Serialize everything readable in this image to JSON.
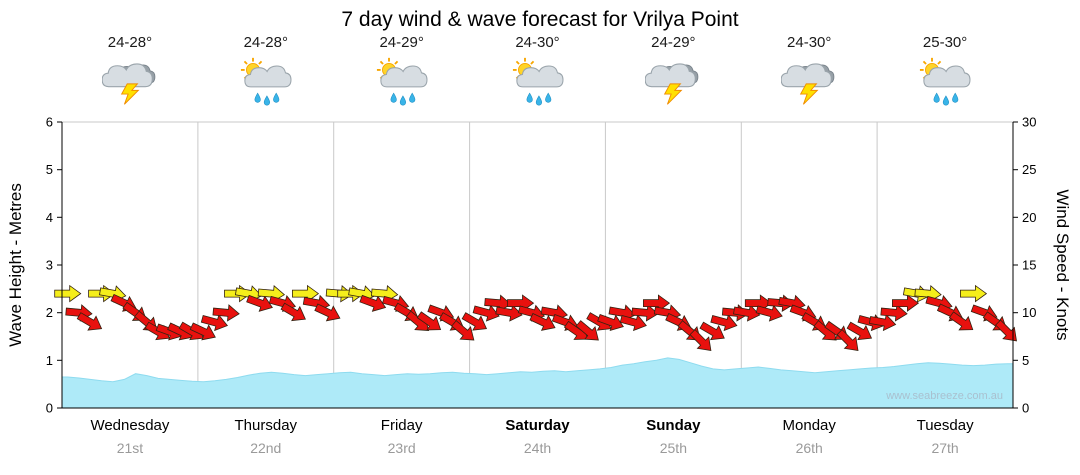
{
  "title": "7 day wind & wave forecast for Vrilya Point",
  "watermark": "www.seabreeze.com.au",
  "axes": {
    "left_title": "Wave Height - Metres",
    "right_title": "Wind Speed - Knots",
    "left_ticks": [
      0,
      1,
      2,
      3,
      4,
      5,
      6
    ],
    "right_ticks": [
      0,
      5,
      10,
      15,
      20,
      25,
      30
    ]
  },
  "days": [
    {
      "name": "Wednesday",
      "date": "21st",
      "temp": "24-28°",
      "icon": "thunderstorm",
      "weekend": false
    },
    {
      "name": "Thursday",
      "date": "22nd",
      "temp": "24-28°",
      "icon": "sun-showers",
      "weekend": false
    },
    {
      "name": "Friday",
      "date": "23rd",
      "temp": "24-29°",
      "icon": "sun-showers",
      "weekend": false
    },
    {
      "name": "Saturday",
      "date": "24th",
      "temp": "24-30°",
      "icon": "sun-showers",
      "weekend": true
    },
    {
      "name": "Sunday",
      "date": "25th",
      "temp": "24-29°",
      "icon": "thunderstorm",
      "weekend": true
    },
    {
      "name": "Monday",
      "date": "26th",
      "temp": "24-30°",
      "icon": "thunderstorm",
      "weekend": false
    },
    {
      "name": "Tuesday",
      "date": "27th",
      "temp": "25-30°",
      "icon": "sun-showers",
      "weekend": false
    }
  ],
  "chart_data": {
    "type": "area",
    "title": "7 day wind & wave forecast for Vrilya Point",
    "x_categories": [
      "Wednesday 21st",
      "Thursday 22nd",
      "Friday 23rd",
      "Saturday 24th",
      "Sunday 25th",
      "Monday 26th",
      "Tuesday 27th"
    ],
    "points_per_day": 12,
    "left_ylabel": "Wave Height - Metres",
    "right_ylabel": "Wind Speed - Knots",
    "left_ylim": [
      0,
      6
    ],
    "right_ylim": [
      0,
      30
    ],
    "grid": "vertical-day-boundaries-only",
    "wave_height_m": [
      0.65,
      0.63,
      0.6,
      0.57,
      0.55,
      0.6,
      0.72,
      0.68,
      0.62,
      0.6,
      0.58,
      0.56,
      0.55,
      0.57,
      0.6,
      0.64,
      0.69,
      0.73,
      0.75,
      0.73,
      0.7,
      0.68,
      0.7,
      0.72,
      0.74,
      0.75,
      0.72,
      0.7,
      0.68,
      0.7,
      0.72,
      0.71,
      0.72,
      0.74,
      0.75,
      0.73,
      0.72,
      0.7,
      0.72,
      0.74,
      0.76,
      0.75,
      0.77,
      0.78,
      0.76,
      0.78,
      0.8,
      0.82,
      0.85,
      0.9,
      0.93,
      0.97,
      1.0,
      1.05,
      1.02,
      0.95,
      0.88,
      0.82,
      0.8,
      0.82,
      0.84,
      0.86,
      0.83,
      0.8,
      0.78,
      0.76,
      0.74,
      0.76,
      0.78,
      0.8,
      0.82,
      0.84,
      0.85,
      0.87,
      0.9,
      0.93,
      0.95,
      0.94,
      0.92,
      0.9,
      0.89,
      0.9,
      0.92,
      0.93
    ],
    "wind_speed_knots": [
      12,
      10,
      9,
      12,
      12,
      11,
      10,
      9,
      8,
      8,
      8,
      8,
      8,
      9,
      10,
      12,
      12,
      11,
      12,
      11,
      10,
      12,
      11,
      10,
      12,
      12,
      12,
      11,
      12,
      11,
      10,
      9,
      9,
      10,
      9,
      8,
      9,
      10,
      11,
      10,
      11,
      10,
      9,
      10,
      9,
      8,
      8,
      9,
      9,
      10,
      9,
      10,
      11,
      10,
      9,
      8,
      7,
      8,
      9,
      10,
      10,
      11,
      10,
      11,
      11,
      10,
      9,
      8,
      8,
      7,
      8,
      9,
      9,
      10,
      11,
      12,
      12,
      11,
      10,
      9,
      12,
      10,
      9,
      8
    ],
    "wind_dir_deg": [
      0,
      5,
      30,
      0,
      10,
      25,
      35,
      40,
      30,
      20,
      25,
      30,
      25,
      15,
      5,
      0,
      10,
      20,
      5,
      15,
      30,
      0,
      10,
      25,
      5,
      0,
      10,
      20,
      5,
      15,
      30,
      40,
      35,
      20,
      30,
      40,
      30,
      15,
      5,
      10,
      0,
      15,
      25,
      10,
      20,
      35,
      40,
      30,
      20,
      10,
      15,
      5,
      0,
      10,
      25,
      40,
      45,
      30,
      15,
      5,
      10,
      0,
      15,
      5,
      10,
      20,
      30,
      40,
      35,
      45,
      30,
      15,
      10,
      5,
      0,
      10,
      5,
      15,
      25,
      35,
      0,
      20,
      35,
      45
    ],
    "yellow_threshold_knots": 12,
    "colors": {
      "wave_fill": "#aeeaf8",
      "wave_edge": "#8edbef",
      "arrow_red": "#e8110e",
      "arrow_yellow": "#f5ee1b",
      "arrow_outline": "#332211",
      "grid": "#c9c9c9",
      "axis": "#000000",
      "watermark": "#a9c0cf"
    }
  }
}
